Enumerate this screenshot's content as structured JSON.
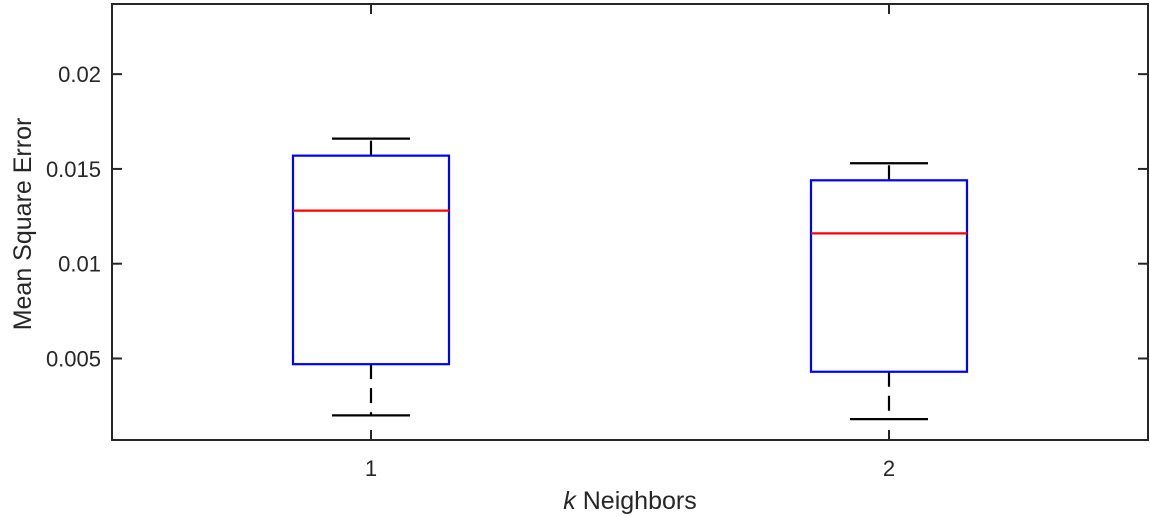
{
  "chart_data": {
    "type": "box",
    "title": "",
    "xlabel_italic": "k",
    "xlabel_rest": " Neighbors",
    "ylabel": "Mean Square Error",
    "ylim": [
      0.0007,
      0.0237
    ],
    "yticks": [
      0.005,
      0.01,
      0.015,
      0.02
    ],
    "ytick_labels": [
      "0.005",
      "0.01",
      "0.015",
      "0.02"
    ],
    "categories": [
      "1",
      "2"
    ],
    "boxes": [
      {
        "category": "1",
        "whisker_low": 0.002,
        "q1": 0.0047,
        "median": 0.0128,
        "q3": 0.0157,
        "whisker_high": 0.0166
      },
      {
        "category": "2",
        "whisker_low": 0.0018,
        "q1": 0.0043,
        "median": 0.0116,
        "q3": 0.0144,
        "whisker_high": 0.0153
      }
    ],
    "grid": false,
    "colors": {
      "box": "#0000ff",
      "median": "#ff0000",
      "whisker": "#000000",
      "axis": "#262626"
    }
  }
}
